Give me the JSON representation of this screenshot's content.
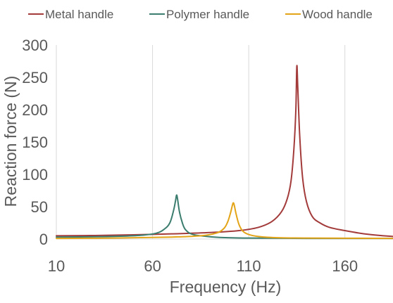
{
  "chart_data": {
    "type": "line",
    "title": "",
    "xlabel": "Frequency (Hz)",
    "ylabel": "Reaction force (N)",
    "xlim": [
      10,
      185
    ],
    "ylim": [
      0,
      300
    ],
    "x_ticks": [
      "10",
      "60",
      "110",
      "160"
    ],
    "x_tick_values": [
      10,
      60,
      110,
      160
    ],
    "y_ticks": [
      "0",
      "50",
      "100",
      "150",
      "200",
      "250",
      "300"
    ],
    "y_tick_values": [
      0,
      50,
      100,
      150,
      200,
      250,
      300
    ],
    "grid": "vertical",
    "legend_position": "top",
    "series": [
      {
        "name": "Metal handle",
        "color": "#A33B3B",
        "x": [
          10,
          30,
          50,
          70,
          90,
          105,
          115,
          122,
          127,
          130,
          132,
          133.5,
          134.5,
          135,
          135.5,
          136.5,
          138,
          140,
          143,
          147,
          152,
          160,
          170,
          180,
          185
        ],
        "y": [
          5,
          5.5,
          6.5,
          8,
          10,
          13,
          18,
          27,
          42,
          62,
          90,
          140,
          200,
          267,
          235,
          160,
          95,
          58,
          35,
          25,
          18,
          13,
          8,
          5,
          4
        ]
      },
      {
        "name": "Polymer handle",
        "color": "#3B7D6E",
        "x": [
          10,
          30,
          45,
          55,
          62,
          66,
          69,
          71,
          72,
          72.5,
          73,
          74,
          75.5,
          77,
          80,
          85,
          95,
          110,
          140,
          185
        ],
        "y": [
          3,
          3.5,
          4.5,
          6,
          9,
          15,
          25,
          45,
          60,
          68,
          62,
          42,
          25,
          15,
          8,
          5,
          2.5,
          1.5,
          1,
          1
        ]
      },
      {
        "name": "Wood handle",
        "color": "#E3A417",
        "x": [
          10,
          40,
          70,
          85,
          93,
          97,
          99,
          100.5,
          101.5,
          102,
          102.5,
          103.5,
          105,
          107,
          110,
          115,
          125,
          140,
          185
        ],
        "y": [
          1,
          1.5,
          3,
          5,
          9,
          16,
          26,
          40,
          52,
          56,
          52,
          38,
          22,
          12,
          7,
          4,
          2,
          1.5,
          1
        ]
      }
    ]
  }
}
